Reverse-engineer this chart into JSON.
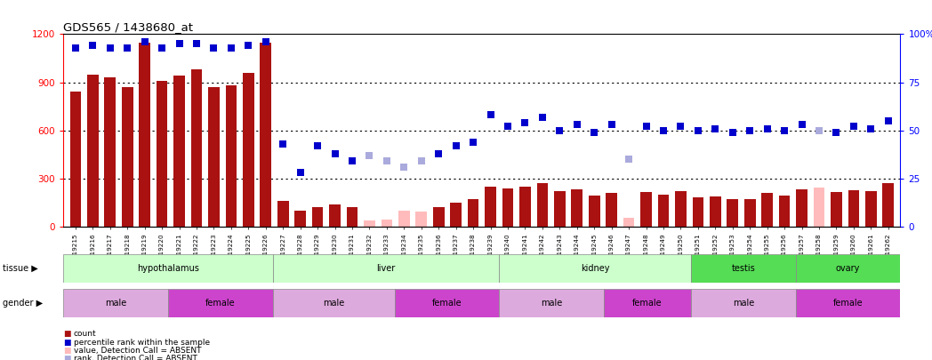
{
  "title": "GDS565 / 1438680_at",
  "samples": [
    "GSM19215",
    "GSM19216",
    "GSM19217",
    "GSM19218",
    "GSM19219",
    "GSM19220",
    "GSM19221",
    "GSM19222",
    "GSM19223",
    "GSM19224",
    "GSM19225",
    "GSM19226",
    "GSM19227",
    "GSM19228",
    "GSM19229",
    "GSM19230",
    "GSM19231",
    "GSM19232",
    "GSM19233",
    "GSM19234",
    "GSM19235",
    "GSM19236",
    "GSM19237",
    "GSM19238",
    "GSM19239",
    "GSM19240",
    "GSM19241",
    "GSM19242",
    "GSM19243",
    "GSM19244",
    "GSM19245",
    "GSM19246",
    "GSM19247",
    "GSM19248",
    "GSM19249",
    "GSM19250",
    "GSM19251",
    "GSM19252",
    "GSM19253",
    "GSM19254",
    "GSM19255",
    "GSM19256",
    "GSM19257",
    "GSM19258",
    "GSM19259",
    "GSM19260",
    "GSM19261",
    "GSM19262"
  ],
  "bar_values": [
    840,
    950,
    930,
    870,
    1150,
    910,
    940,
    980,
    870,
    880,
    960,
    1150,
    160,
    100,
    120,
    140,
    120,
    40,
    45,
    100,
    95,
    120,
    150,
    170,
    250,
    240,
    250,
    270,
    220,
    235,
    195,
    210,
    55,
    215,
    200,
    220,
    185,
    190,
    175,
    175,
    210,
    195,
    235,
    245,
    215,
    230,
    225,
    270
  ],
  "bar_absent": [
    false,
    false,
    false,
    false,
    false,
    false,
    false,
    false,
    false,
    false,
    false,
    false,
    false,
    false,
    false,
    false,
    false,
    true,
    true,
    true,
    true,
    false,
    false,
    false,
    false,
    false,
    false,
    false,
    false,
    false,
    false,
    false,
    true,
    false,
    false,
    false,
    false,
    false,
    false,
    false,
    false,
    false,
    false,
    true,
    false,
    false,
    false,
    false
  ],
  "rank_values": [
    93,
    94,
    93,
    93,
    96,
    93,
    95,
    95,
    93,
    93,
    94,
    96,
    43,
    28,
    42,
    38,
    34,
    37,
    34,
    31,
    34,
    38,
    42,
    44,
    58,
    52,
    54,
    57,
    50,
    53,
    49,
    53,
    35,
    52,
    50,
    52,
    50,
    51,
    49,
    50,
    51,
    50,
    53,
    50,
    49,
    52,
    51,
    55
  ],
  "rank_absent": [
    false,
    false,
    false,
    false,
    false,
    false,
    false,
    false,
    false,
    false,
    false,
    false,
    false,
    false,
    false,
    false,
    false,
    true,
    true,
    true,
    true,
    false,
    false,
    false,
    false,
    false,
    false,
    false,
    false,
    false,
    false,
    false,
    true,
    false,
    false,
    false,
    false,
    false,
    false,
    false,
    false,
    false,
    false,
    true,
    false,
    false,
    false,
    false
  ],
  "tissue_groups": [
    {
      "label": "hypothalamus",
      "start": 0,
      "end": 12,
      "color": "#ccffcc"
    },
    {
      "label": "liver",
      "start": 12,
      "end": 25,
      "color": "#ccffcc"
    },
    {
      "label": "kidney",
      "start": 25,
      "end": 36,
      "color": "#ccffcc"
    },
    {
      "label": "testis",
      "start": 36,
      "end": 42,
      "color": "#55dd55"
    },
    {
      "label": "ovary",
      "start": 42,
      "end": 48,
      "color": "#55dd55"
    }
  ],
  "gender_groups": [
    {
      "label": "male",
      "start": 0,
      "end": 6,
      "color": "#ddaadd"
    },
    {
      "label": "female",
      "start": 6,
      "end": 12,
      "color": "#cc44cc"
    },
    {
      "label": "male",
      "start": 12,
      "end": 19,
      "color": "#ddaadd"
    },
    {
      "label": "female",
      "start": 19,
      "end": 25,
      "color": "#cc44cc"
    },
    {
      "label": "male",
      "start": 25,
      "end": 31,
      "color": "#ddaadd"
    },
    {
      "label": "female",
      "start": 31,
      "end": 36,
      "color": "#cc44cc"
    },
    {
      "label": "male",
      "start": 36,
      "end": 42,
      "color": "#ddaadd"
    },
    {
      "label": "female",
      "start": 42,
      "end": 48,
      "color": "#cc44cc"
    }
  ],
  "ylim_left": [
    0,
    1200
  ],
  "ylim_right": [
    0,
    100
  ],
  "yticks_left": [
    0,
    300,
    600,
    900,
    1200
  ],
  "yticks_right": [
    0,
    25,
    50,
    75,
    100
  ],
  "bar_color_present": "#aa1111",
  "bar_color_absent": "#ffbbbb",
  "rank_color_present": "#0000cc",
  "rank_color_absent": "#aaaadd",
  "marker_size": 28,
  "tissue_border_color": "#888888",
  "gender_border_color": "#888888"
}
